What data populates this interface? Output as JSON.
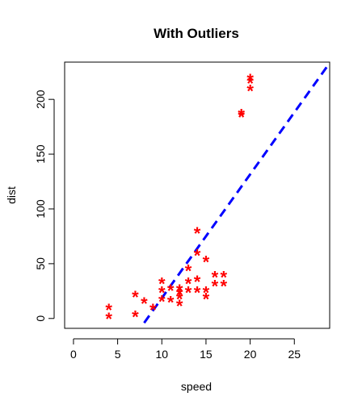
{
  "chart_data": {
    "type": "scatter",
    "title": "With Outliers",
    "xlabel": "speed",
    "ylabel": "dist",
    "xlim": [
      -1,
      29
    ],
    "ylim": [
      -9,
      234
    ],
    "xticks": [
      "0",
      "5",
      "10",
      "15",
      "20",
      "25"
    ],
    "yticks": [
      "0",
      "50",
      "100",
      "150",
      "200"
    ],
    "grid": false,
    "colors": {
      "points": "#ff0000",
      "fit_line": "#0000ff"
    },
    "marker": "asterisk",
    "points": [
      {
        "x": 4,
        "y": 2
      },
      {
        "x": 4,
        "y": 10
      },
      {
        "x": 7,
        "y": 4
      },
      {
        "x": 7,
        "y": 22
      },
      {
        "x": 8,
        "y": 16
      },
      {
        "x": 9,
        "y": 10
      },
      {
        "x": 10,
        "y": 18
      },
      {
        "x": 10,
        "y": 26
      },
      {
        "x": 10,
        "y": 34
      },
      {
        "x": 11,
        "y": 17
      },
      {
        "x": 11,
        "y": 28
      },
      {
        "x": 12,
        "y": 14
      },
      {
        "x": 12,
        "y": 20
      },
      {
        "x": 12,
        "y": 24
      },
      {
        "x": 12,
        "y": 28
      },
      {
        "x": 13,
        "y": 26
      },
      {
        "x": 13,
        "y": 34
      },
      {
        "x": 13,
        "y": 46
      },
      {
        "x": 14,
        "y": 26
      },
      {
        "x": 14,
        "y": 36
      },
      {
        "x": 14,
        "y": 60
      },
      {
        "x": 14,
        "y": 80
      },
      {
        "x": 15,
        "y": 20
      },
      {
        "x": 15,
        "y": 26
      },
      {
        "x": 15,
        "y": 54
      },
      {
        "x": 16,
        "y": 32
      },
      {
        "x": 16,
        "y": 40
      },
      {
        "x": 17,
        "y": 32
      },
      {
        "x": 17,
        "y": 40
      },
      {
        "x": 19,
        "y": 186
      },
      {
        "x": 19,
        "y": 188
      },
      {
        "x": 20,
        "y": 210
      },
      {
        "x": 20,
        "y": 217
      },
      {
        "x": 20,
        "y": 220
      }
    ],
    "fit_line": {
      "x": [
        8,
        28.8
      ],
      "y": [
        -4,
        231
      ]
    }
  }
}
